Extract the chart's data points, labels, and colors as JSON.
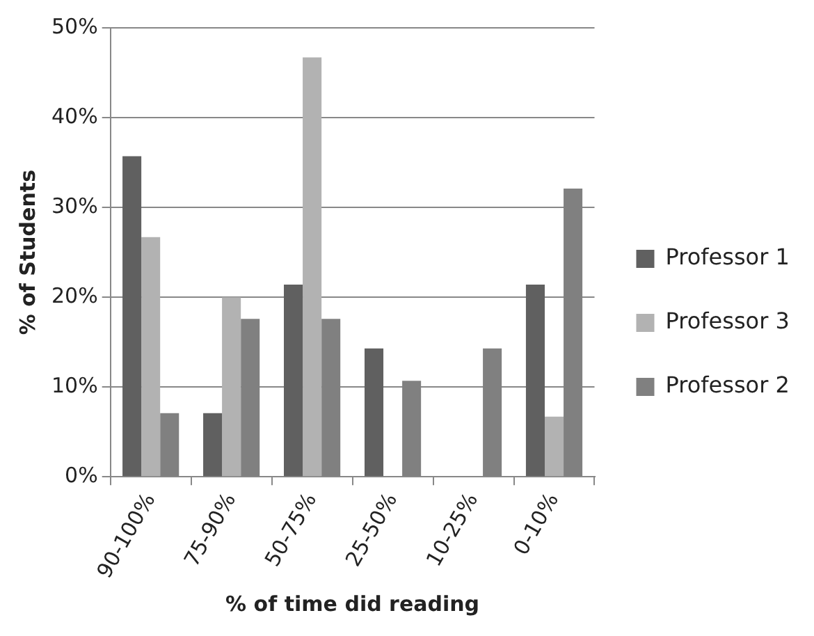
{
  "chart_data": {
    "type": "bar",
    "xlabel": "% of time did reading",
    "ylabel": "% of Students",
    "categories": [
      "90-100%",
      "75-90%",
      "50-75%",
      "25-50%",
      "10-25%",
      "0-10%"
    ],
    "series": [
      {
        "name": "Professor 1",
        "color": "#606060",
        "values": [
          35.7,
          7.1,
          21.4,
          14.3,
          0,
          21.4
        ]
      },
      {
        "name": "Professor 3",
        "color": "#b2b2b2",
        "values": [
          26.7,
          20,
          46.7,
          0,
          0,
          6.7
        ]
      },
      {
        "name": "Professor 2",
        "color": "#808080",
        "values": [
          7.1,
          17.6,
          17.6,
          10.7,
          14.3,
          32.1
        ]
      }
    ],
    "ylim": [
      0,
      50
    ],
    "yticks": [
      {
        "value": 0,
        "label": "0%"
      },
      {
        "value": 10,
        "label": "10%"
      },
      {
        "value": 20,
        "label": "20%"
      },
      {
        "value": 30,
        "label": "30%"
      },
      {
        "value": 40,
        "label": "40%"
      },
      {
        "value": 50,
        "label": "50%"
      }
    ],
    "grid": "y",
    "legend": "right"
  }
}
